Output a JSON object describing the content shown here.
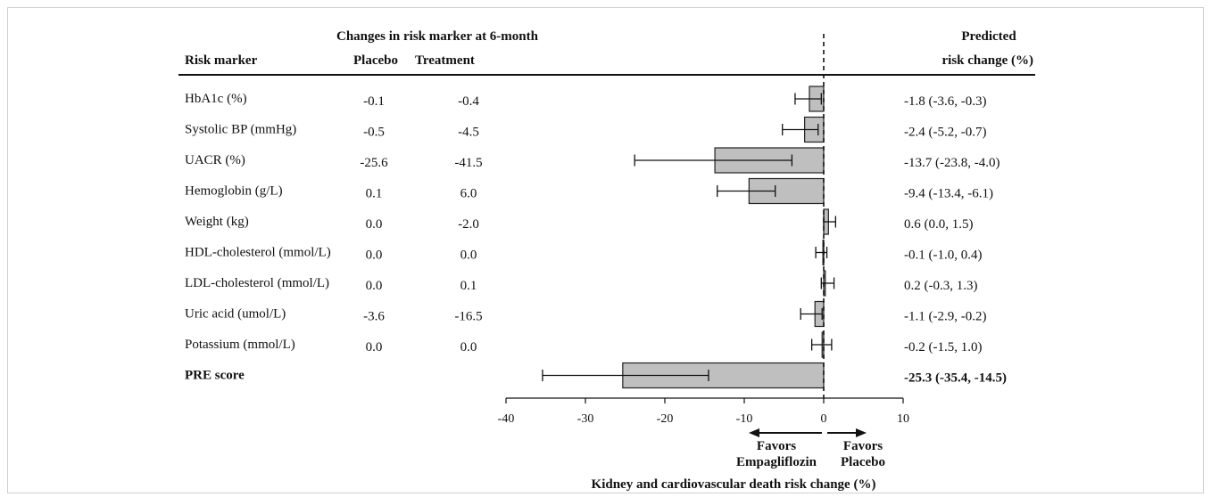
{
  "header": {
    "group_label": "Changes in risk marker at 6-month",
    "col_marker": "Risk marker",
    "col_placebo": "Placebo",
    "col_treatment": "Treatment",
    "col_predicted_line1": "Predicted",
    "col_predicted_line2": "risk change (%)"
  },
  "rows": [
    {
      "marker": "HbA1c (%)",
      "placebo": "-0.1",
      "treatment": "-0.4",
      "ci_text": "-1.8 (-3.6, -0.3)",
      "bold": false
    },
    {
      "marker": "Systolic BP (mmHg)",
      "placebo": "-0.5",
      "treatment": "-4.5",
      "ci_text": "-2.4 (-5.2, -0.7)",
      "bold": false
    },
    {
      "marker": "UACR (%)",
      "placebo": "-25.6",
      "treatment": "-41.5",
      "ci_text": "-13.7 (-23.8, -4.0)",
      "bold": false
    },
    {
      "marker": "Hemoglobin (g/L)",
      "placebo": "0.1",
      "treatment": "6.0",
      "ci_text": "-9.4 (-13.4, -6.1)",
      "bold": false
    },
    {
      "marker": "Weight (kg)",
      "placebo": "0.0",
      "treatment": "-2.0",
      "ci_text": "0.6 (0.0, 1.5)",
      "bold": false
    },
    {
      "marker": "HDL-cholesterol (mmol/L)",
      "placebo": "0.0",
      "treatment": "0.0",
      "ci_text": "-0.1 (-1.0, 0.4)",
      "bold": false
    },
    {
      "marker": "LDL-cholesterol (mmol/L)",
      "placebo": "0.0",
      "treatment": "0.1",
      "ci_text": "0.2 (-0.3, 1.3)",
      "bold": false
    },
    {
      "marker": "Uric acid (umol/L)",
      "placebo": "-3.6",
      "treatment": "-16.5",
      "ci_text": "-1.1 (-2.9, -0.2)",
      "bold": false
    },
    {
      "marker": "Potassium (mmol/L)",
      "placebo": "0.0",
      "treatment": "0.0",
      "ci_text": "-0.2 (-1.5, 1.0)",
      "bold": false
    },
    {
      "marker": "PRE score",
      "placebo": "",
      "treatment": "",
      "ci_text": "-25.3 (-35.4, -14.5)",
      "bold": true
    }
  ],
  "chart_data": {
    "type": "bar",
    "orientation": "horizontal",
    "categories": [
      "HbA1c (%)",
      "Systolic BP (mmHg)",
      "UACR (%)",
      "Hemoglobin (g/L)",
      "Weight (kg)",
      "HDL-cholesterol (mmol/L)",
      "LDL-cholesterol (mmol/L)",
      "Uric acid (umol/L)",
      "Potassium (mmol/L)",
      "PRE score"
    ],
    "values": [
      -1.8,
      -2.4,
      -13.7,
      -9.4,
      0.6,
      -0.1,
      0.2,
      -1.1,
      -0.2,
      -25.3
    ],
    "ci_low": [
      -3.6,
      -5.2,
      -23.8,
      -13.4,
      0.0,
      -1.0,
      -0.3,
      -2.9,
      -1.5,
      -35.4
    ],
    "ci_high": [
      -0.3,
      -0.7,
      -4.0,
      -6.1,
      1.5,
      0.4,
      1.3,
      -0.2,
      1.0,
      -14.5
    ],
    "xlim": [
      -40,
      10
    ],
    "xticks": [
      "-40",
      "-30",
      "-20",
      "-10",
      "0",
      "10"
    ],
    "xlabel": "Kidney and cardiovascular death risk change (%)",
    "reference_line": 0,
    "annotation_left": [
      "Favors",
      "Empagliflozin"
    ],
    "annotation_right": [
      "Favors",
      "Placebo"
    ],
    "bar_color": "#bfbfbf",
    "bar_stroke": "#222222"
  }
}
